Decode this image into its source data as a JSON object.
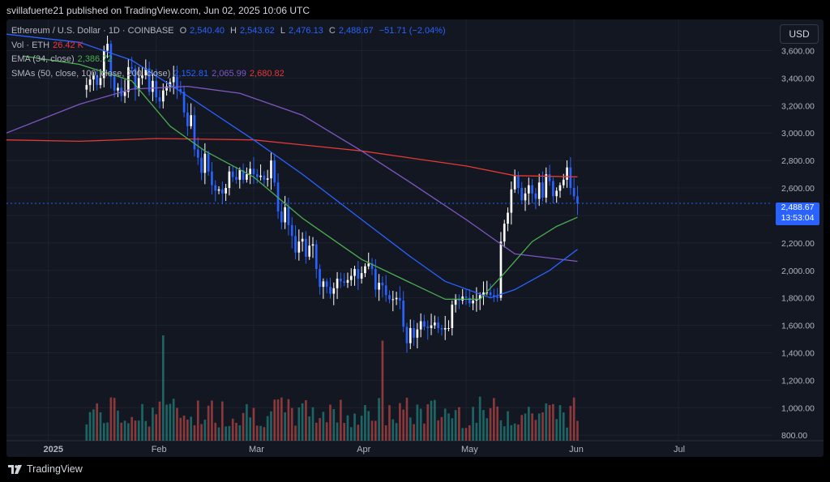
{
  "header": {
    "text": "svillafuerte21 published on TradingView.com, Jun 02, 2025 10:06 UTC"
  },
  "legend": {
    "symbol": "Ethereum / U.S. Dollar · 1D · COINBASE",
    "o_label": "O",
    "o": "2,540.40",
    "h_label": "H",
    "h": "2,543.62",
    "l_label": "L",
    "l": "2,476.13",
    "c_label": "C",
    "c": "2,488.67",
    "change": "−51.71 (−2.04%)",
    "vol_label": "Vol · ETH",
    "vol": "26.42 K",
    "ema_label": "EMA (34, close)",
    "ema": "2,386.72",
    "sma_label": "SMAs (50, close, 100, close, 200, close)",
    "sma50": "2,152.81",
    "sma100": "2,065.99",
    "sma200": "2,680.82"
  },
  "currency_button": "USD",
  "last_price": {
    "price": "2,488.67",
    "countdown": "13:53:04"
  },
  "footer": {
    "brand": "TradingView"
  },
  "colors": {
    "up": "#ffffff",
    "down": "#2962ff",
    "vol_up": "#26a69a",
    "vol_down": "#ef5350",
    "ema": "#4caf50",
    "sma50": "#2962ff",
    "sma100": "#7e57c2",
    "sma200": "#e53935",
    "bg": "#131722",
    "grid": "#1e222d"
  },
  "chart_data": {
    "type": "candlestick",
    "symbol": "ETH/USD",
    "y_ticks": [
      800,
      1000,
      1200,
      1400,
      1600,
      1800,
      2000,
      2200,
      2400,
      2600,
      2800,
      3000,
      3200,
      3400,
      3600
    ],
    "y_tick_labels": [
      "800.00",
      "1,000.00",
      "1,200.00",
      "1,400.00",
      "1,600.00",
      "1,800.00",
      "2,000.00",
      "2,200.00",
      "2,400.00",
      "2,600.00",
      "2,800.00",
      "3,000.00",
      "3,200.00",
      "3,400.00",
      "3,600.00"
    ],
    "ylim": [
      760,
      3780
    ],
    "x_ticks": [
      {
        "date": "2025-01-01",
        "label": "2025"
      },
      {
        "date": "2025-02-01",
        "label": "Feb"
      },
      {
        "date": "2025-03-01",
        "label": "Mar"
      },
      {
        "date": "2025-04-01",
        "label": "Apr"
      },
      {
        "date": "2025-05-01",
        "label": "May"
      },
      {
        "date": "2025-06-01",
        "label": "Jun"
      },
      {
        "date": "2025-07-01",
        "label": "Jul"
      }
    ],
    "xlim": [
      "2024-12-20",
      "2025-07-28"
    ],
    "last_date": "2025-06-02",
    "closes": [
      3350,
      3390,
      3420,
      3350,
      3400,
      3600,
      3650,
      3410,
      3310,
      3330,
      3270,
      3300,
      3480,
      3470,
      3320,
      3400,
      3420,
      3470,
      3300,
      3380,
      3260,
      3230,
      3310,
      3340,
      3370,
      3410,
      3320,
      3300,
      3150,
      3050,
      3130,
      2880,
      2820,
      2710,
      2850,
      2720,
      2620,
      2580,
      2590,
      2560,
      2600,
      2720,
      2680,
      2660,
      2730,
      2660,
      2700,
      2740,
      2700,
      2680,
      2690,
      2660,
      2670,
      2800,
      2640,
      2430,
      2350,
      2460,
      2330,
      2250,
      2130,
      2210,
      2230,
      2100,
      2180,
      2190,
      2010,
      1880,
      1920,
      1880,
      1830,
      1870,
      1940,
      1920,
      1910,
      1930,
      1960,
      2010,
      1940,
      1980,
      2030,
      2050,
      2010,
      1860,
      1910,
      1890,
      1820,
      1790,
      1790,
      1800,
      1780,
      1590,
      1470,
      1580,
      1510,
      1570,
      1630,
      1590,
      1580,
      1600,
      1620,
      1580,
      1570,
      1580,
      1580,
      1750,
      1790,
      1780,
      1810,
      1800,
      1760,
      1780,
      1790,
      1820,
      1840,
      1840,
      1820,
      1810,
      1800,
      2210,
      2340,
      2420,
      2590,
      2690,
      2600,
      2510,
      2560,
      2620,
      2560,
      2520,
      2640,
      2530,
      2700,
      2650,
      2540,
      2580,
      2620,
      2660,
      2750,
      2600,
      2540,
      2488
    ],
    "ema34": [
      {
        "date": "2024-12-25",
        "value": 3560
      },
      {
        "date": "2025-01-10",
        "value": 3500
      },
      {
        "date": "2025-01-25",
        "value": 3380
      },
      {
        "date": "2025-02-05",
        "value": 3050
      },
      {
        "date": "2025-02-15",
        "value": 2870
      },
      {
        "date": "2025-03-01",
        "value": 2680
      },
      {
        "date": "2025-03-15",
        "value": 2380
      },
      {
        "date": "2025-04-01",
        "value": 2080
      },
      {
        "date": "2025-04-15",
        "value": 1910
      },
      {
        "date": "2025-04-25",
        "value": 1790
      },
      {
        "date": "2025-05-05",
        "value": 1790
      },
      {
        "date": "2025-05-12",
        "value": 1980
      },
      {
        "date": "2025-05-20",
        "value": 2210
      },
      {
        "date": "2025-05-27",
        "value": 2320
      },
      {
        "date": "2025-06-02",
        "value": 2387
      }
    ],
    "sma50": [
      {
        "date": "2024-12-20",
        "value": 3720
      },
      {
        "date": "2025-01-10",
        "value": 3660
      },
      {
        "date": "2025-01-25",
        "value": 3530
      },
      {
        "date": "2025-02-10",
        "value": 3270
      },
      {
        "date": "2025-03-01",
        "value": 2950
      },
      {
        "date": "2025-03-15",
        "value": 2700
      },
      {
        "date": "2025-04-01",
        "value": 2370
      },
      {
        "date": "2025-04-15",
        "value": 2100
      },
      {
        "date": "2025-04-25",
        "value": 1920
      },
      {
        "date": "2025-05-08",
        "value": 1800
      },
      {
        "date": "2025-05-15",
        "value": 1860
      },
      {
        "date": "2025-05-25",
        "value": 2000
      },
      {
        "date": "2025-06-02",
        "value": 2153
      }
    ],
    "sma100": [
      {
        "date": "2024-12-20",
        "value": 3000
      },
      {
        "date": "2025-01-10",
        "value": 3210
      },
      {
        "date": "2025-01-25",
        "value": 3320
      },
      {
        "date": "2025-02-10",
        "value": 3340
      },
      {
        "date": "2025-02-25",
        "value": 3290
      },
      {
        "date": "2025-03-15",
        "value": 3130
      },
      {
        "date": "2025-04-01",
        "value": 2870
      },
      {
        "date": "2025-04-15",
        "value": 2640
      },
      {
        "date": "2025-05-01",
        "value": 2370
      },
      {
        "date": "2025-05-15",
        "value": 2120
      },
      {
        "date": "2025-06-02",
        "value": 2066
      }
    ],
    "sma200": [
      {
        "date": "2024-12-20",
        "value": 2950
      },
      {
        "date": "2025-01-10",
        "value": 2940
      },
      {
        "date": "2025-02-01",
        "value": 2960
      },
      {
        "date": "2025-03-01",
        "value": 2950
      },
      {
        "date": "2025-04-01",
        "value": 2870
      },
      {
        "date": "2025-05-01",
        "value": 2760
      },
      {
        "date": "2025-05-15",
        "value": 2690
      },
      {
        "date": "2025-06-02",
        "value": 2681
      }
    ],
    "volume_scale_note": "unlabeled overlay pane",
    "volume_spikes": [
      {
        "date": "2025-02-03",
        "rel": 1.0
      },
      {
        "date": "2025-04-07",
        "rel": 0.95
      }
    ]
  }
}
